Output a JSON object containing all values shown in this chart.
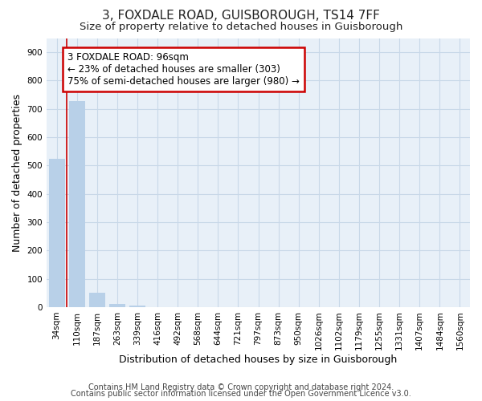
{
  "title": "3, FOXDALE ROAD, GUISBOROUGH, TS14 7FF",
  "subtitle": "Size of property relative to detached houses in Guisborough",
  "xlabel": "Distribution of detached houses by size in Guisborough",
  "ylabel": "Number of detached properties",
  "categories": [
    "34sqm",
    "110sqm",
    "187sqm",
    "263sqm",
    "339sqm",
    "416sqm",
    "492sqm",
    "568sqm",
    "644sqm",
    "721sqm",
    "797sqm",
    "873sqm",
    "950sqm",
    "1026sqm",
    "1102sqm",
    "1179sqm",
    "1255sqm",
    "1331sqm",
    "1407sqm",
    "1484sqm",
    "1560sqm"
  ],
  "values": [
    525,
    727,
    50,
    11,
    4,
    0,
    0,
    0,
    0,
    0,
    0,
    0,
    0,
    0,
    0,
    0,
    0,
    0,
    0,
    0,
    0
  ],
  "bar_color": "#b8d0e8",
  "annotation_text": "3 FOXDALE ROAD: 96sqm\n← 23% of detached houses are smaller (303)\n75% of semi-detached houses are larger (980) →",
  "annotation_box_facecolor": "#ffffff",
  "annotation_box_edgecolor": "#cc0000",
  "footer_line1": "Contains HM Land Registry data © Crown copyright and database right 2024.",
  "footer_line2": "Contains public sector information licensed under the Open Government Licence v3.0.",
  "ylim_max": 950,
  "yticks": [
    0,
    100,
    200,
    300,
    400,
    500,
    600,
    700,
    800,
    900
  ],
  "axes_bg": "#e8f0f8",
  "fig_bg": "#ffffff",
  "grid_color": "#c8d8e8",
  "red_line_x": 0.5,
  "figsize": [
    6.0,
    5.0
  ],
  "dpi": 100,
  "title_fontsize": 11,
  "subtitle_fontsize": 9.5,
  "axis_label_fontsize": 9,
  "tick_fontsize": 7.5,
  "footer_fontsize": 7,
  "annot_fontsize": 8.5
}
